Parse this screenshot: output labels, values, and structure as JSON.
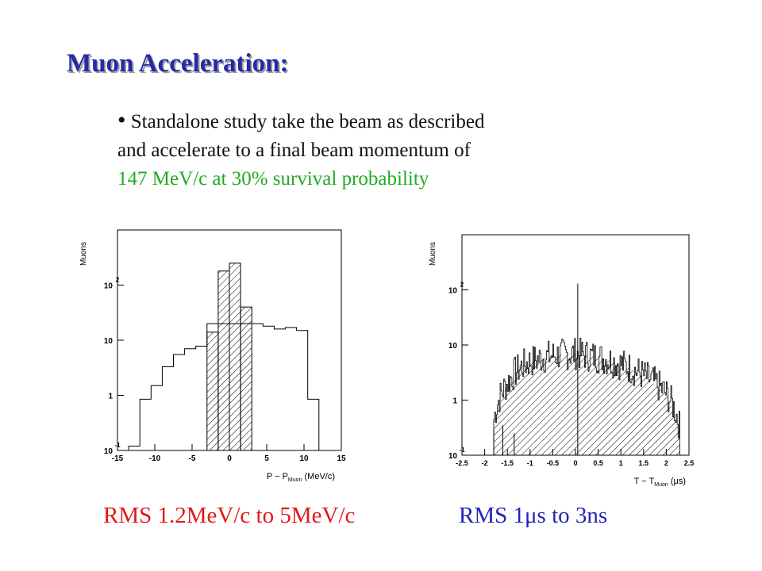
{
  "slide": {
    "title": "Muon Acceleration:",
    "bullet_symbol": "•",
    "bullet_line1": "Standalone study take the beam as described",
    "bullet_line2": "and accelerate to a final beam momentum  of",
    "bullet_line3": "147 MeV/c at 30% survival probability",
    "caption_left": "RMS 1.2MeV/c to 5MeV/c",
    "caption_right": "RMS 1μs to 3ns",
    "colors": {
      "title": "#2828a8",
      "highlight": "#22aa22",
      "caption_left": "#e01818",
      "caption_right": "#2222bb"
    }
  },
  "chart_data": [
    {
      "type": "histogram",
      "ylabel": "Muons",
      "xlabel": "P − P_Muon (MeV/c)",
      "yscale": "log",
      "xlim": [
        -15,
        15
      ],
      "ylim": [
        0.1,
        1000
      ],
      "x_ticks": [
        "-15",
        "-10",
        "-5",
        "0",
        "5",
        "10",
        "15"
      ],
      "y_ticks": [
        "10^-1",
        "1",
        "10",
        "10^2"
      ],
      "bin_edges": [
        -15,
        -13.5,
        -12,
        -10.5,
        -9,
        -7.5,
        -6,
        -4.5,
        -3,
        -1.5,
        0,
        1.5,
        3,
        4.5,
        6,
        7.5,
        9,
        10.5,
        12,
        13.5,
        15
      ],
      "series": [
        {
          "style": "outline",
          "values": [
            0,
            0.12,
            0.85,
            1.5,
            3.3,
            5.5,
            7,
            7.8,
            20,
            20,
            20,
            20,
            20,
            18,
            16,
            17,
            15,
            0.85,
            0,
            0
          ]
        },
        {
          "style": "hatched",
          "values": [
            0,
            0,
            0,
            0,
            0,
            0,
            0,
            0,
            14,
            180,
            250,
            40,
            0,
            0,
            0,
            0,
            0,
            0,
            0,
            0
          ]
        }
      ]
    },
    {
      "type": "histogram",
      "ylabel": "Muons",
      "xlabel": "T − T_Muon (μs)",
      "yscale": "log",
      "xlim": [
        -2.5,
        2.5
      ],
      "ylim": [
        0.1,
        1000
      ],
      "x_ticks": [
        "-2.5",
        "-2",
        "-1.5",
        "-1",
        "-0.5",
        "0",
        "0.5",
        "1",
        "1.5",
        "2",
        "2.5"
      ],
      "y_ticks": [
        "10^-1",
        "1",
        "10",
        "10^2"
      ],
      "spike": {
        "x": 0.05,
        "value": 130
      },
      "envelope": [
        [
          -1.8,
          0.4
        ],
        [
          -1.5,
          2
        ],
        [
          -1.2,
          4
        ],
        [
          -1,
          5
        ],
        [
          -0.5,
          6.5
        ],
        [
          0,
          7
        ],
        [
          0.5,
          6
        ],
        [
          1,
          4.5
        ],
        [
          1.5,
          2.8
        ],
        [
          2,
          1.3
        ],
        [
          2.3,
          0.3
        ]
      ]
    }
  ]
}
